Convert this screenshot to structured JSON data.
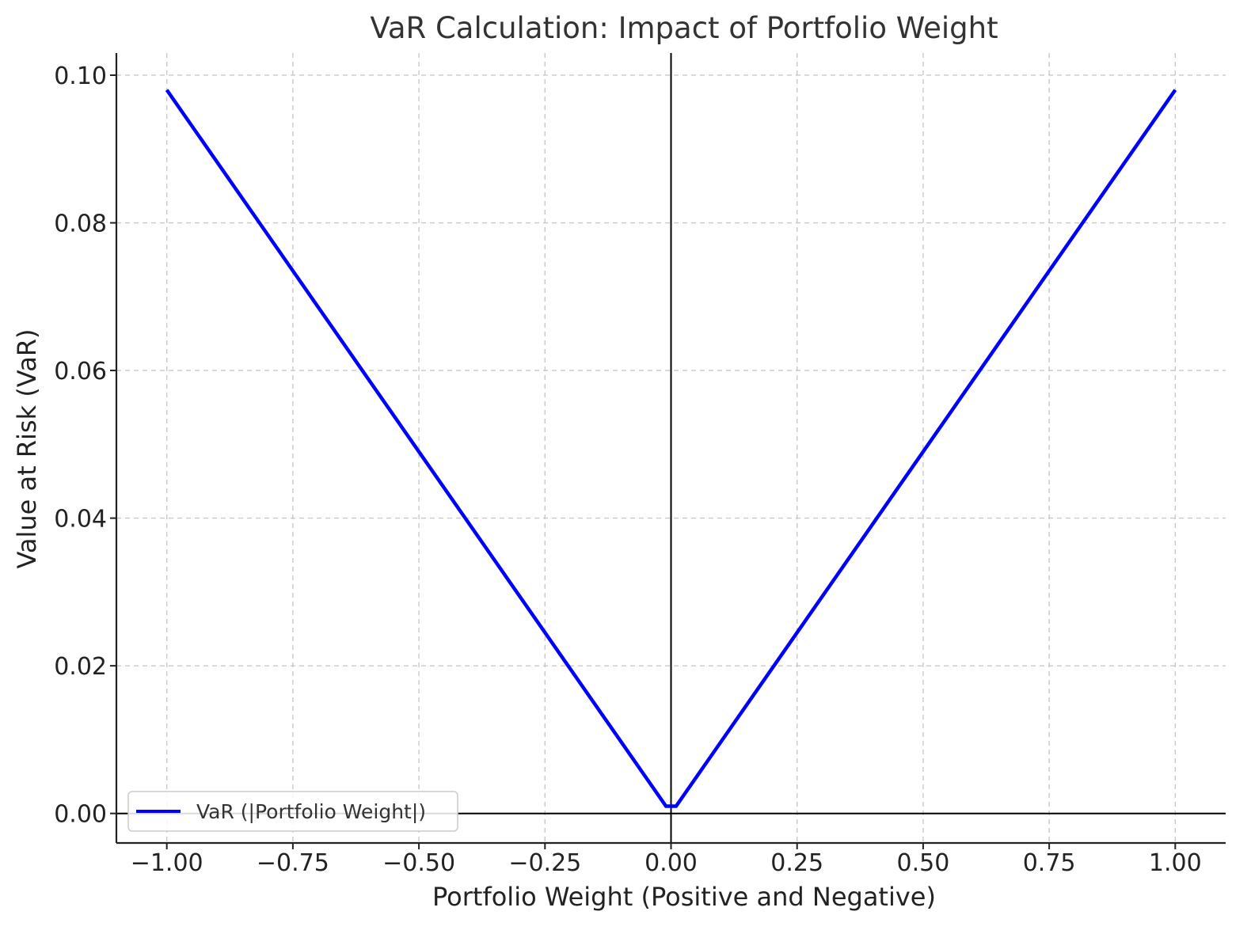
{
  "chart_data": {
    "type": "line",
    "title": "VaR Calculation: Impact of Portfolio Weight",
    "xlabel": "Portfolio Weight (Positive and Negative)",
    "ylabel": "Value at Risk (VaR)",
    "xlim": [
      -1.1,
      1.1
    ],
    "ylim": [
      -0.004,
      0.103
    ],
    "x_ticks": [
      -1.0,
      -0.75,
      -0.5,
      -0.25,
      0.0,
      0.25,
      0.5,
      0.75,
      1.0
    ],
    "x_tick_labels": [
      "−1.00",
      "−0.75",
      "−0.50",
      "−0.25",
      "0.00",
      "0.25",
      "0.50",
      "0.75",
      "1.00"
    ],
    "y_ticks": [
      0.0,
      0.02,
      0.04,
      0.06,
      0.08,
      0.1
    ],
    "y_tick_labels": [
      "0.00",
      "0.02",
      "0.04",
      "0.06",
      "0.08",
      "0.10"
    ],
    "grid": true,
    "reference_lines": {
      "horizontal_y": 0.0,
      "vertical_x": 0.0
    },
    "legend_position": "lower-left",
    "series": [
      {
        "name": "VaR (|Portfolio Weight|)",
        "color": "#0000ff",
        "x": [
          -1.0,
          -0.75,
          -0.5,
          -0.25,
          -0.01,
          0.0,
          0.01,
          0.25,
          0.5,
          0.75,
          1.0
        ],
        "y": [
          0.098,
          0.0735,
          0.049,
          0.0245,
          0.00098,
          0.00098,
          0.00098,
          0.0245,
          0.049,
          0.0735,
          0.098
        ]
      }
    ]
  }
}
